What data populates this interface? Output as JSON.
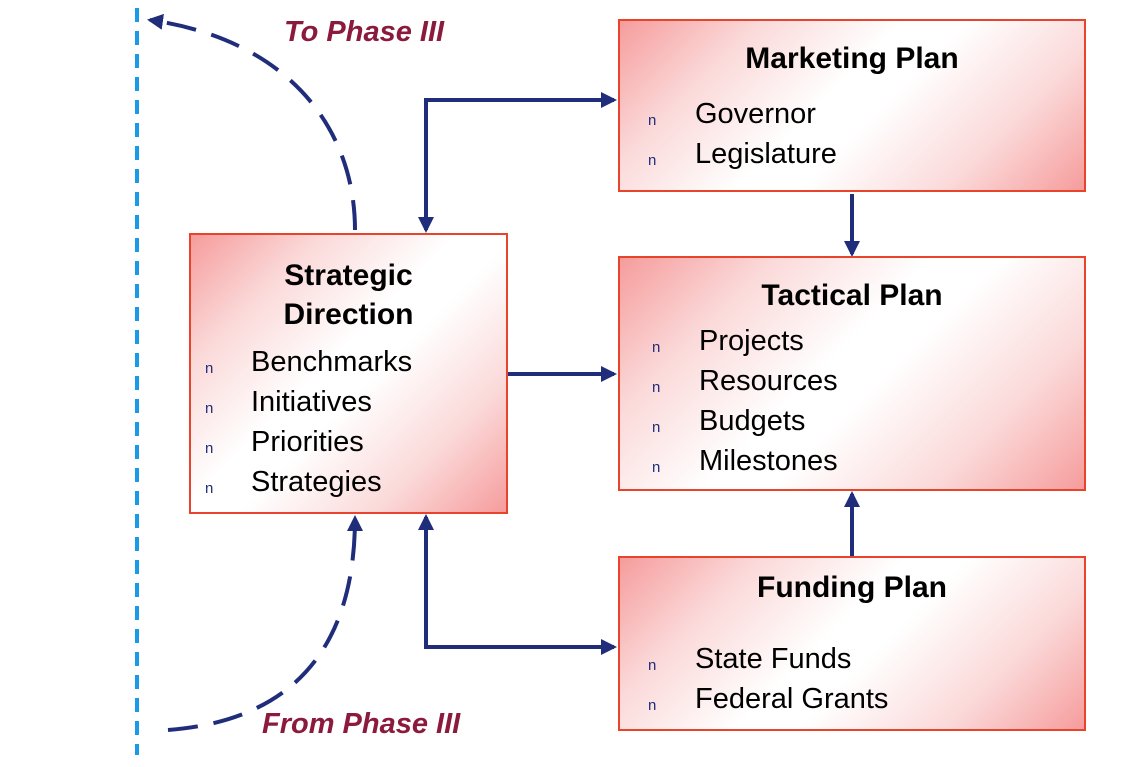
{
  "phase_labels": {
    "to": "To Phase III",
    "from": "From Phase III"
  },
  "boxes": {
    "strategic": {
      "title_line1": "Strategic",
      "title_line2": "Direction",
      "items": [
        "Benchmarks",
        "Initiatives",
        "Priorities",
        "Strategies"
      ]
    },
    "marketing": {
      "title": "Marketing Plan",
      "items": [
        "Governor",
        "Legislature"
      ]
    },
    "tactical": {
      "title": "Tactical Plan",
      "items": [
        "Projects",
        "Resources",
        "Budgets",
        "Milestones"
      ]
    },
    "funding": {
      "title": "Funding Plan",
      "items": [
        "State Funds",
        "Federal Grants"
      ]
    }
  },
  "bullet_glyph": "n",
  "colors": {
    "arrow": "#1f2d7a",
    "box_border": "#e8442b",
    "phase_label": "#8b1a3d",
    "boundary_line": "#1a9be8"
  }
}
